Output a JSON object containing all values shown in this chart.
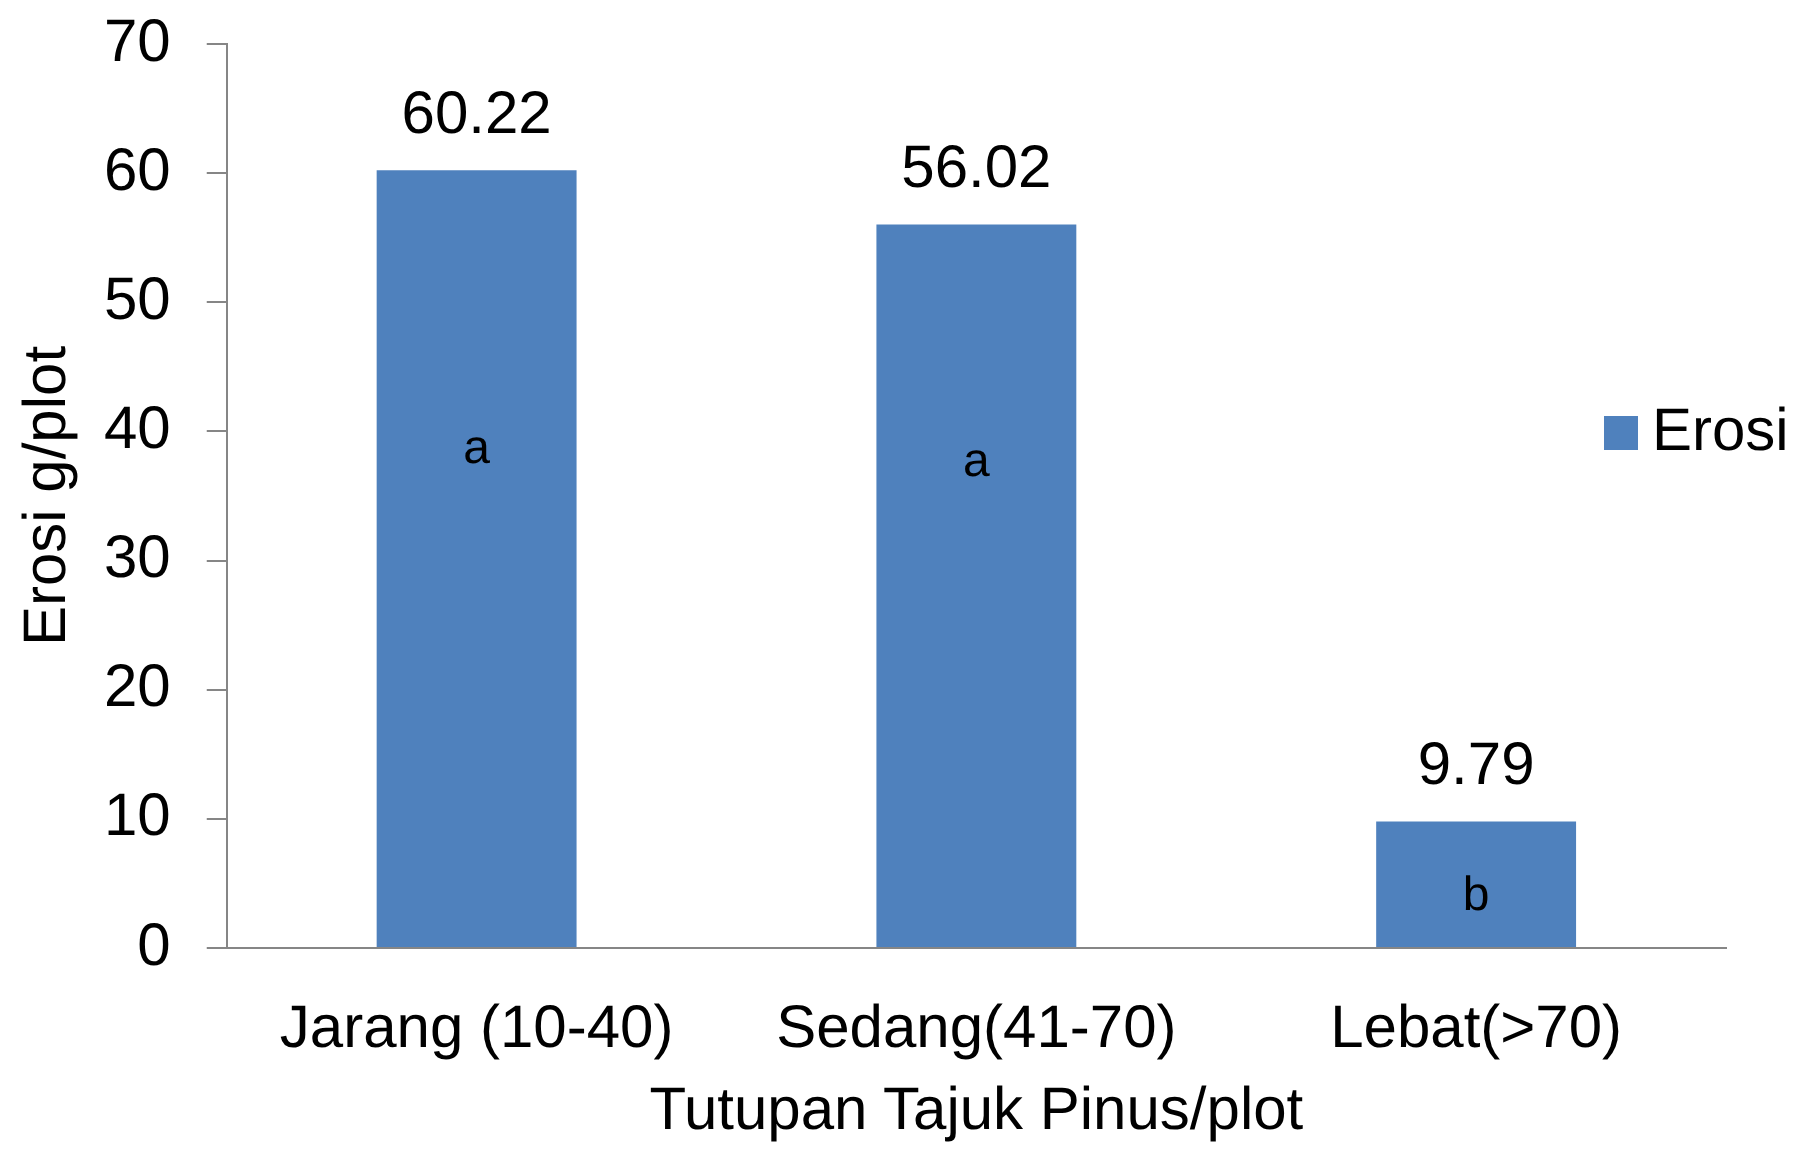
{
  "chart_data": {
    "type": "bar",
    "categories": [
      "Jarang (10-40)",
      "Sedang(41-70)",
      "Lebat(>70)"
    ],
    "series": [
      {
        "name": "Erosi",
        "color": "#4f81bd",
        "values": [
          60.22,
          56.02,
          9.79
        ]
      }
    ],
    "xlabel": "Tutupan Tajuk Pinus/plot",
    "ylabel": "Erosi g/plot",
    "ylim": [
      0,
      70
    ],
    "yticks": [
      0,
      10,
      20,
      30,
      40,
      50,
      60,
      70
    ],
    "legend": "right",
    "data_labels": true,
    "annotations": [
      "a",
      "a",
      "b"
    ]
  }
}
